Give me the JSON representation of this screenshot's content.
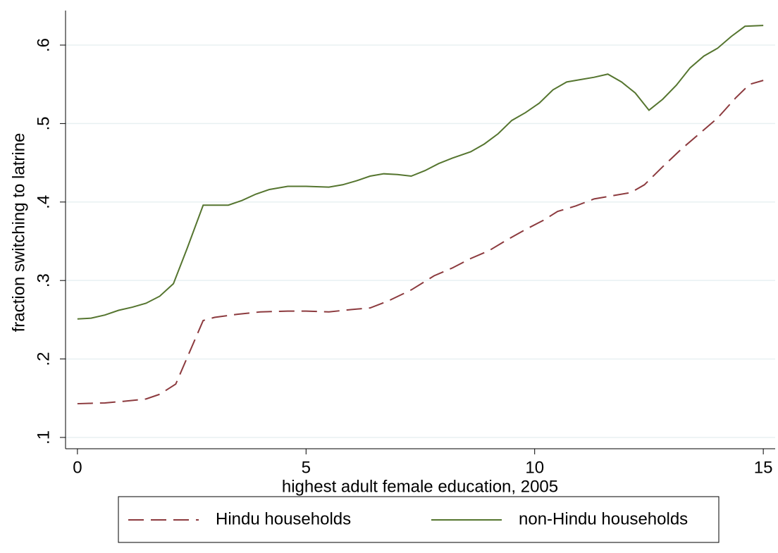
{
  "chart_data": {
    "type": "line",
    "xlabel": "highest adult female education, 2005",
    "ylabel": "fraction switching to latrine",
    "xlim": [
      -0.26,
      15.26
    ],
    "ylim": [
      0.0856,
      0.644
    ],
    "xticks": [
      0,
      5,
      10,
      15
    ],
    "yticks": [
      {
        "value": 0.1,
        "label": ".1"
      },
      {
        "value": 0.2,
        "label": ".2"
      },
      {
        "value": 0.3,
        "label": ".3"
      },
      {
        "value": 0.4,
        "label": ".4"
      },
      {
        "value": 0.5,
        "label": ".5"
      },
      {
        "value": 0.6,
        "label": ".6"
      }
    ],
    "grid": true,
    "legend": "bottom",
    "series": [
      {
        "name": "Hindu households",
        "color": "#8c3a3e",
        "dash": true,
        "x": [
          0,
          0.6,
          1.0,
          1.5,
          1.8,
          2.15,
          2.75,
          3.0,
          3.5,
          4.0,
          4.6,
          5.0,
          5.5,
          6.0,
          6.4,
          6.8,
          7.3,
          7.8,
          8.2,
          8.6,
          9.0,
          9.4,
          9.8,
          10.2,
          10.5,
          10.9,
          11.3,
          11.6,
          12.1,
          12.4,
          12.8,
          13.2,
          13.6,
          14.0,
          14.4,
          14.7,
          15.0
        ],
        "values": [
          0.143,
          0.144,
          0.146,
          0.149,
          0.155,
          0.168,
          0.249,
          0.253,
          0.257,
          0.26,
          0.261,
          0.261,
          0.26,
          0.263,
          0.265,
          0.274,
          0.288,
          0.306,
          0.316,
          0.328,
          0.338,
          0.352,
          0.365,
          0.377,
          0.388,
          0.395,
          0.404,
          0.407,
          0.412,
          0.422,
          0.445,
          0.467,
          0.487,
          0.507,
          0.533,
          0.55,
          0.555
        ]
      },
      {
        "name": "non-Hindu households",
        "color": "#55752f",
        "dash": false,
        "x": [
          0,
          0.3,
          0.6,
          0.9,
          1.2,
          1.5,
          1.8,
          2.1,
          2.4,
          2.75,
          3.0,
          3.3,
          3.6,
          3.9,
          4.2,
          4.6,
          5.0,
          5.5,
          5.8,
          6.1,
          6.4,
          6.7,
          7.0,
          7.3,
          7.6,
          7.9,
          8.2,
          8.6,
          8.9,
          9.2,
          9.5,
          9.8,
          10.1,
          10.4,
          10.7,
          11.0,
          11.3,
          11.6,
          11.9,
          12.2,
          12.5,
          12.8,
          13.1,
          13.4,
          13.7,
          14.0,
          14.3,
          14.6,
          15.0
        ],
        "values": [
          0.251,
          0.252,
          0.256,
          0.262,
          0.266,
          0.271,
          0.28,
          0.296,
          0.341,
          0.396,
          0.396,
          0.396,
          0.402,
          0.41,
          0.416,
          0.42,
          0.42,
          0.419,
          0.422,
          0.427,
          0.433,
          0.436,
          0.435,
          0.433,
          0.44,
          0.449,
          0.456,
          0.464,
          0.474,
          0.487,
          0.504,
          0.514,
          0.526,
          0.543,
          0.553,
          0.556,
          0.559,
          0.563,
          0.553,
          0.539,
          0.517,
          0.531,
          0.549,
          0.571,
          0.586,
          0.596,
          0.611,
          0.624,
          0.625
        ]
      }
    ]
  }
}
